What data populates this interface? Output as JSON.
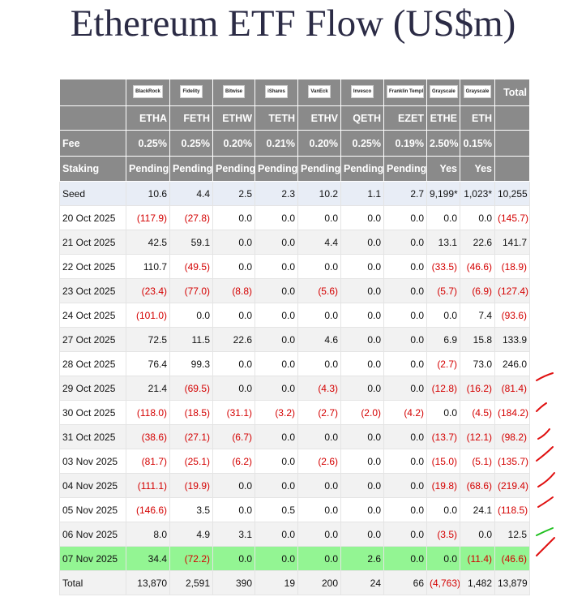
{
  "title": "Ethereum ETF Flow (US$m)",
  "table": {
    "logos": [
      "BlackRock",
      "Fidelity",
      "Bitwise",
      "iShares",
      "VanEck",
      "Invesco",
      "Franklin Templeton",
      "Grayscale",
      "Grayscale"
    ],
    "total_header": "Total",
    "tickers": [
      "ETHA",
      "FETH",
      "ETHW",
      "TETH",
      "ETHV",
      "QETH",
      "EZET",
      "ETHE",
      "ETH"
    ],
    "fee": {
      "label": "Fee",
      "values": [
        "0.25%",
        "0.25%",
        "0.20%",
        "0.21%",
        "0.20%",
        "0.25%",
        "0.19%",
        "2.50%",
        "0.15%"
      ]
    },
    "staking": {
      "label": "Staking",
      "values": [
        "Pending",
        "Pending",
        "Pending",
        "Pending",
        "Pending",
        "Pending",
        "Pending",
        "Yes",
        "Yes"
      ]
    },
    "rows": [
      {
        "label": "Seed",
        "values": [
          "10.6",
          "4.4",
          "2.5",
          "2.3",
          "10.2",
          "1.1",
          "2.7",
          "9,199*",
          "1,023*",
          "10,255"
        ]
      },
      {
        "label": "20 Oct 2025",
        "values": [
          "(117.9)",
          "(27.8)",
          "0.0",
          "0.0",
          "0.0",
          "0.0",
          "0.0",
          "0.0",
          "0.0",
          "(145.7)"
        ]
      },
      {
        "label": "21 Oct 2025",
        "values": [
          "42.5",
          "59.1",
          "0.0",
          "0.0",
          "4.4",
          "0.0",
          "0.0",
          "13.1",
          "22.6",
          "141.7"
        ]
      },
      {
        "label": "22 Oct 2025",
        "values": [
          "110.7",
          "(49.5)",
          "0.0",
          "0.0",
          "0.0",
          "0.0",
          "0.0",
          "(33.5)",
          "(46.6)",
          "(18.9)"
        ]
      },
      {
        "label": "23 Oct 2025",
        "values": [
          "(23.4)",
          "(77.0)",
          "(8.8)",
          "0.0",
          "(5.6)",
          "0.0",
          "0.0",
          "(5.7)",
          "(6.9)",
          "(127.4)"
        ]
      },
      {
        "label": "24 Oct 2025",
        "values": [
          "(101.0)",
          "0.0",
          "0.0",
          "0.0",
          "0.0",
          "0.0",
          "0.0",
          "0.0",
          "7.4",
          "(93.6)"
        ]
      },
      {
        "label": "27 Oct 2025",
        "values": [
          "72.5",
          "11.5",
          "22.6",
          "0.0",
          "4.6",
          "0.0",
          "0.0",
          "6.9",
          "15.8",
          "133.9"
        ]
      },
      {
        "label": "28 Oct 2025",
        "values": [
          "76.4",
          "99.3",
          "0.0",
          "0.0",
          "0.0",
          "0.0",
          "0.0",
          "(2.7)",
          "73.0",
          "246.0"
        ]
      },
      {
        "label": "29 Oct 2025",
        "values": [
          "21.4",
          "(69.5)",
          "0.0",
          "0.0",
          "(4.3)",
          "0.0",
          "0.0",
          "(12.8)",
          "(16.2)",
          "(81.4)"
        ]
      },
      {
        "label": "30 Oct 2025",
        "values": [
          "(118.0)",
          "(18.5)",
          "(31.1)",
          "(3.2)",
          "(2.7)",
          "(2.0)",
          "(4.2)",
          "0.0",
          "(4.5)",
          "(184.2)"
        ]
      },
      {
        "label": "31 Oct 2025",
        "values": [
          "(38.6)",
          "(27.1)",
          "(6.7)",
          "0.0",
          "0.0",
          "0.0",
          "0.0",
          "(13.7)",
          "(12.1)",
          "(98.2)"
        ]
      },
      {
        "label": "03 Nov 2025",
        "values": [
          "(81.7)",
          "(25.1)",
          "(6.2)",
          "0.0",
          "(2.6)",
          "0.0",
          "0.0",
          "(15.0)",
          "(5.1)",
          "(135.7)"
        ]
      },
      {
        "label": "04 Nov 2025",
        "values": [
          "(111.1)",
          "(19.9)",
          "0.0",
          "0.0",
          "0.0",
          "0.0",
          "0.0",
          "(19.8)",
          "(68.6)",
          "(219.4)"
        ]
      },
      {
        "label": "05 Nov 2025",
        "values": [
          "(146.6)",
          "3.5",
          "0.0",
          "0.5",
          "0.0",
          "0.0",
          "0.0",
          "0.0",
          "24.1",
          "(118.5)"
        ]
      },
      {
        "label": "06 Nov 2025",
        "values": [
          "8.0",
          "4.9",
          "3.1",
          "0.0",
          "0.0",
          "0.0",
          "0.0",
          "(3.5)",
          "0.0",
          "12.5"
        ]
      },
      {
        "label": "07 Nov 2025",
        "values": [
          "34.4",
          "(72.2)",
          "0.0",
          "0.0",
          "0.0",
          "2.6",
          "0.0",
          "0.0",
          "(11.4)",
          "(46.6)"
        ]
      },
      {
        "label": "Total",
        "values": [
          "13,870",
          "2,591",
          "390",
          "19",
          "200",
          "24",
          "66",
          "(4,763)",
          "1,482",
          "13,879"
        ]
      }
    ]
  }
}
